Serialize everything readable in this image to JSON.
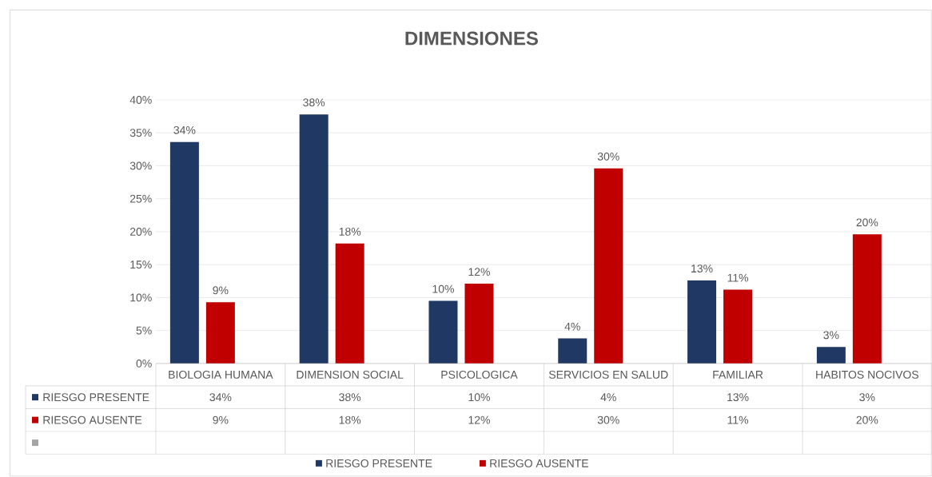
{
  "chart_data": {
    "type": "bar",
    "title": "DIMENSIONES",
    "categories": [
      "BIOLOGIA HUMANA",
      "DIMENSION SOCIAL",
      "PSICOLOGICA",
      "SERVICIOS EN SALUD",
      "FAMILIAR",
      "HABITOS NOCIVOS"
    ],
    "series": [
      {
        "name": "RIESGO PRESENTE",
        "color": "#1f3864",
        "values": [
          33.6,
          37.8,
          9.5,
          3.8,
          12.6,
          2.5
        ],
        "value_labels": [
          "34%",
          "38%",
          "10%",
          "4%",
          "13%",
          "3%"
        ]
      },
      {
        "name": "RIESGO AUSENTE",
        "color": "#c00000",
        "values": [
          9.3,
          18.2,
          12.1,
          29.6,
          11.2,
          19.6
        ],
        "value_labels": [
          "9%",
          "18%",
          "12%",
          "30%",
          "11%",
          "20%"
        ]
      },
      {
        "color": "#a5a5a5",
        "values": [
          null,
          null,
          null,
          null,
          null,
          null
        ]
      }
    ],
    "ylim": [
      0,
      40
    ],
    "yticks": [
      {
        "value": 0,
        "label": "0%"
      },
      {
        "value": 5,
        "label": "5%"
      },
      {
        "value": 10,
        "label": "10%"
      },
      {
        "value": 15,
        "label": "15%"
      },
      {
        "value": 20,
        "label": "20%"
      },
      {
        "value": 25,
        "label": "25%"
      },
      {
        "value": 30,
        "label": "30%"
      },
      {
        "value": 35,
        "label": "35%"
      },
      {
        "value": 40,
        "label": "40%"
      }
    ],
    "grid": "y",
    "legend": "bottom"
  }
}
